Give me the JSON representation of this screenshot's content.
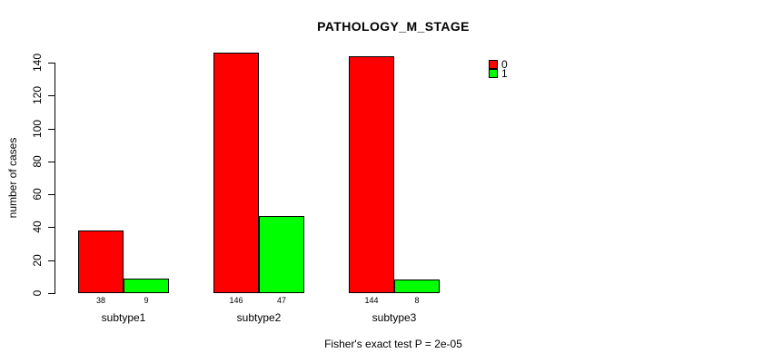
{
  "chart_data": {
    "type": "bar",
    "grouped": true,
    "title": "PATHOLOGY_M_STAGE",
    "caption": "Fisher's exact test P = 2e-05",
    "xlabel": "",
    "ylabel": "number of cases",
    "categories": [
      "subtype1",
      "subtype2",
      "subtype3"
    ],
    "series": [
      {
        "name": "0",
        "color": "#FF0000",
        "values": [
          38,
          146,
          144
        ]
      },
      {
        "name": "1",
        "color": "#00FF00",
        "values": [
          9,
          47,
          8
        ]
      }
    ],
    "bar_value_labels": [
      [
        "38",
        "9"
      ],
      [
        "146",
        "47"
      ],
      [
        "144",
        "8"
      ]
    ],
    "ylim": [
      0,
      140
    ],
    "yticks": [
      "0",
      "20",
      "40",
      "60",
      "80",
      "100",
      "120",
      "140"
    ],
    "grid": false,
    "legend": {
      "position": "top-right",
      "entries": [
        {
          "label": "0",
          "color": "#FF0000"
        },
        {
          "label": "1",
          "color": "#00FF00"
        }
      ]
    },
    "background": "#FFFFFF",
    "text_color": "#000000"
  }
}
